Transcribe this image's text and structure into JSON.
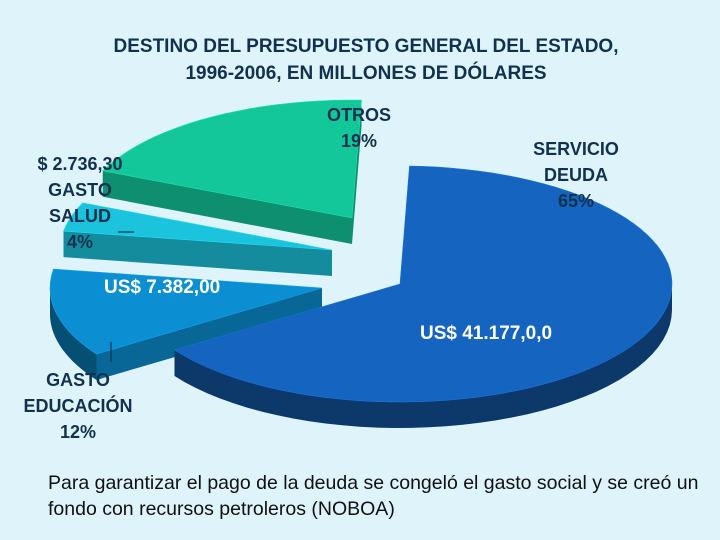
{
  "chart_data": {
    "type": "pie",
    "style": "3d-exploded",
    "title_lines": [
      "DESTINO  DEL PRESUPUESTO GENERAL DEL ESTADO,",
      "1996-2006, EN MILLONES DE DÓLARES"
    ],
    "slices": [
      {
        "key": "deuda",
        "percent": 65,
        "value_text": "US$ 41.177,0,0",
        "label_lines": [
          "SERVICIO",
          "DEUDA",
          "65%"
        ],
        "color": "#1565c0"
      },
      {
        "key": "educacion",
        "percent": 12,
        "value_text": "US$ 7.382,00",
        "label_lines": [
          "GASTO",
          "EDUCACIÓN",
          "12%"
        ],
        "color": "#0b8fd2"
      },
      {
        "key": "salud",
        "percent": 4,
        "value_text": "$ 2.736,30",
        "label_lines": [
          "GASTO",
          "SALUD",
          "4%"
        ],
        "color": "#1cc3dc"
      },
      {
        "key": "otros",
        "percent": 19,
        "value_text": "",
        "label_lines": [
          "OTROS",
          "19%"
        ],
        "color": "#14c79a"
      }
    ]
  },
  "caption": "Para garantizar el pago de la deuda se congeló el gasto social y se creó un fondo con recursos petroleros (NOBOA)"
}
